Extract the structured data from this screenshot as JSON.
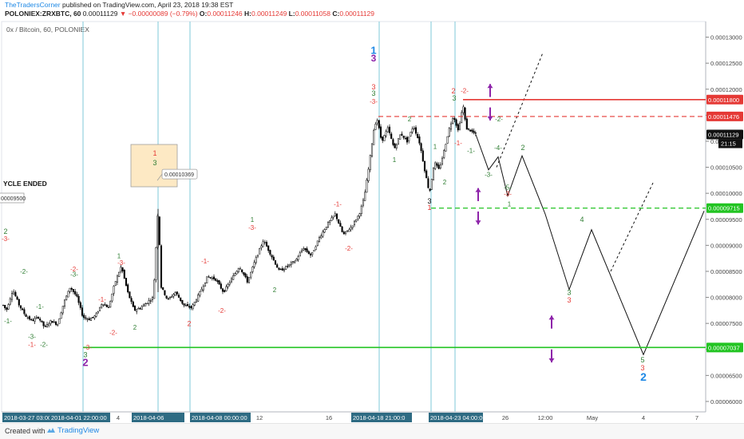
{
  "header": {
    "author": "TheTradersCorner",
    "published_text": "published on TradingView.com, April 23, 2018 19:38 EST",
    "symbol": "POLONIEX:ZRXBTC, 60",
    "last_price": "0.00011129",
    "change": "▼ −0.00000089 (−0.79%)",
    "o_label": "O:",
    "o_value": "0.00011246",
    "h_label": "H:",
    "h_value": "0.00011249",
    "l_label": "L:",
    "l_value": "0.00011058",
    "c_label": "C:",
    "c_value": "0.00011129"
  },
  "footer": {
    "created_with": "Created with",
    "brand": "TradingView"
  },
  "colors": {
    "candle": "#000000",
    "vline": "#7fc8d8",
    "red": "#e53935",
    "green": "#22c422",
    "label_green": "#2e7d32",
    "purple": "#8e24aa",
    "blue": "#1e88e5",
    "note_bg": "#fde9c4"
  },
  "chart_data": {
    "type": "candlestick",
    "title": "0x / Bitcoin, 60, POLONIEX",
    "ylim": [
      5.8e-05,
      0.000133
    ],
    "y_ticks": [
      "0.00013000",
      "0.00012500",
      "0.00012000",
      "0.00011500",
      "0.00011000",
      "0.00010500",
      "0.00010000",
      "0.00009500",
      "0.00009000",
      "0.00008500",
      "0.00008000",
      "0.00007500",
      "0.00007000",
      "0.00006500",
      "0.00006000"
    ],
    "x_ticks": [
      {
        "label": "2018-03-27 03:00:00",
        "highlighted": true
      },
      {
        "label": "2018-04-01 22:00:00",
        "highlighted": true
      },
      {
        "label": "4",
        "highlighted": false
      },
      {
        "label": "2018-04-06",
        "highlighted": true
      },
      {
        "label": "2018-04-08 00:00:00",
        "highlighted": true
      },
      {
        "label": "12",
        "highlighted": false
      },
      {
        "label": "16",
        "highlighted": false
      },
      {
        "label": "2018-04-18 21:00:0",
        "highlighted": true
      },
      {
        "label": "2018-04-",
        "highlighted": true
      },
      {
        "label": "2018-04-23 04:00:00",
        "highlighted": true
      },
      {
        "label": "26",
        "highlighted": false
      },
      {
        "label": "12:00",
        "highlighted": false
      },
      {
        "label": "May",
        "highlighted": false
      },
      {
        "label": "4",
        "highlighted": false
      },
      {
        "label": "7",
        "highlighted": false
      }
    ],
    "series": [
      {
        "kind": "price_path",
        "points": [
          [
            0,
            7.95e-05
          ],
          [
            8,
            7.75e-05
          ],
          [
            16,
            8.15e-05
          ],
          [
            24,
            7.85e-05
          ],
          [
            32,
            7.65e-05
          ],
          [
            40,
            7.55e-05
          ],
          [
            48,
            7.62e-05
          ],
          [
            56,
            7.42e-05
          ],
          [
            64,
            7.55e-05
          ],
          [
            72,
            7.48e-05
          ],
          [
            80,
            7.9e-05
          ],
          [
            88,
            8.2e-05
          ],
          [
            96,
            8.02e-05
          ],
          [
            104,
            7.62e-05
          ],
          [
            112,
            7.58e-05
          ],
          [
            120,
            7.65e-05
          ],
          [
            128,
            7.9e-05
          ],
          [
            136,
            7.8e-05
          ],
          [
            144,
            8.28e-05
          ],
          [
            152,
            8.6e-05
          ],
          [
            160,
            8.1e-05
          ],
          [
            168,
            7.75e-05
          ],
          [
            176,
            7.8e-05
          ],
          [
            184,
            7.9e-05
          ],
          [
            192,
            8e-05
          ],
          [
            198,
            9.7e-05
          ],
          [
            202,
            8.2e-05
          ],
          [
            210,
            7.95e-05
          ],
          [
            220,
            8.1e-05
          ],
          [
            230,
            7.85e-05
          ],
          [
            240,
            7.8e-05
          ],
          [
            250,
            8.08e-05
          ],
          [
            260,
            8.4e-05
          ],
          [
            270,
            8.35e-05
          ],
          [
            280,
            8.1e-05
          ],
          [
            290,
            8.35e-05
          ],
          [
            300,
            8.6e-05
          ],
          [
            310,
            8.3e-05
          ],
          [
            320,
            8.72e-05
          ],
          [
            330,
            9.1e-05
          ],
          [
            340,
            8.8e-05
          ],
          [
            350,
            8.5e-05
          ],
          [
            360,
            8.6e-05
          ],
          [
            370,
            8.7e-05
          ],
          [
            380,
            8.95e-05
          ],
          [
            390,
            8.8e-05
          ],
          [
            400,
            9.15e-05
          ],
          [
            410,
            9.4e-05
          ],
          [
            420,
            9.6e-05
          ],
          [
            430,
            9.2e-05
          ],
          [
            440,
            9.35e-05
          ],
          [
            450,
            9.6e-05
          ],
          [
            456,
            9.9e-05
          ],
          [
            462,
            0.000105
          ],
          [
            468,
            0.000112
          ],
          [
            472,
            0.0001145
          ],
          [
            478,
            0.00011
          ],
          [
            486,
            0.0001125
          ],
          [
            494,
            0.0001085
          ],
          [
            502,
            0.0001115
          ],
          [
            510,
            0.00011
          ],
          [
            518,
            0.000113
          ],
          [
            526,
            0.0001095
          ],
          [
            532,
            0.0001045
          ],
          [
            538,
            0.0001
          ],
          [
            544,
            0.000106
          ],
          [
            550,
            0.0001045
          ],
          [
            556,
            0.000108
          ],
          [
            562,
            0.000112
          ],
          [
            568,
            0.000115
          ],
          [
            574,
            0.000112
          ],
          [
            580,
            0.000117
          ],
          [
            584,
            0.0001125
          ],
          [
            590,
            0.000112
          ],
          [
            596,
            0.0001113
          ]
        ]
      },
      {
        "kind": "projection",
        "points": [
          [
            596,
            0.0001113
          ],
          [
            612,
            0.0001045
          ],
          [
            624,
            0.000107
          ],
          [
            636,
            9.95e-05
          ],
          [
            654,
            0.0001072
          ],
          [
            683,
            9.6e-05
          ],
          [
            713,
            8.15e-05
          ],
          [
            741,
            9.3e-05
          ],
          [
            806,
            6.9e-05
          ],
          [
            882,
            9.66e-05
          ]
        ]
      },
      {
        "kind": "dashed_projection",
        "points": [
          [
            622,
            0.000105
          ],
          [
            680,
            0.000127
          ]
        ]
      },
      {
        "kind": "dashed_projection",
        "points": [
          [
            765,
            8.5e-05
          ],
          [
            818,
            0.000102
          ]
        ]
      }
    ],
    "levels": [
      {
        "label": "0.00011800",
        "value": 0.000118,
        "style": "solid",
        "color": "red",
        "from_x": 580
      },
      {
        "label": "0.00011476",
        "value": 0.00011476,
        "style": "dashed",
        "color": "red",
        "from_x": 474
      },
      {
        "label": "0.00009715",
        "value": 9.715e-05,
        "style": "dashed",
        "color": "green",
        "from_x": 540
      },
      {
        "label": "0.00007037",
        "value": 7.037e-05,
        "style": "solid",
        "color": "green",
        "from_x": 104
      }
    ],
    "current_price": {
      "label": "0.00011129",
      "countdown": "21:15",
      "value": 0.00011129
    },
    "vertical_markers_x": [
      104,
      198,
      238,
      475,
      540,
      570
    ],
    "note": {
      "text": "0.00010369",
      "label_top": "1",
      "label_bottom": "3",
      "value": 0.00010369
    },
    "left_text": "YCLE ENDED",
    "left_box": "00009500",
    "annotations": [
      {
        "text": "1",
        "x": 468,
        "y": 0.0001268,
        "color": "blue",
        "size": 13
      },
      {
        "text": "3",
        "x": 468,
        "y": 0.0001253,
        "color": "purple",
        "size": 12
      },
      {
        "text": "3",
        "x": 468,
        "y": 0.00012,
        "color": "red",
        "size": 9
      },
      {
        "text": "3",
        "x": 468,
        "y": 0.0001187,
        "color": "label_green",
        "size": 9
      },
      {
        "text": "-3-",
        "x": 468,
        "y": 0.0001172,
        "color": "red",
        "size": 8
      },
      {
        "text": "2",
        "x": 568,
        "y": 0.0001192,
        "color": "red",
        "size": 9
      },
      {
        "text": "-2-",
        "x": 582,
        "y": 0.0001193,
        "color": "red",
        "size": 8
      },
      {
        "text": "3",
        "x": 569,
        "y": 0.0001178,
        "color": "label_green",
        "size": 9
      },
      {
        "text": "1",
        "x": 494,
        "y": 0.000106,
        "color": "label_green",
        "size": 8
      },
      {
        "text": "2",
        "x": 513,
        "y": 0.0001138,
        "color": "label_green",
        "size": 8
      },
      {
        "text": "1",
        "x": 545,
        "y": 0.0001085,
        "color": "label_green",
        "size": 8
      },
      {
        "text": "2",
        "x": 557,
        "y": 0.0001017,
        "color": "label_green",
        "size": 8
      },
      {
        "text": "3",
        "x": 538,
        "y": 9.8e-05,
        "color": "black",
        "size": 9
      },
      {
        "text": "1",
        "x": 538,
        "y": 9.68e-05,
        "color": "red",
        "size": 9
      },
      {
        "text": "-1-",
        "x": 574,
        "y": 0.0001092,
        "color": "red",
        "size": 8
      },
      {
        "text": "-1-",
        "x": 590,
        "y": 0.0001078,
        "color": "label_green",
        "size": 8
      },
      {
        "text": "-2-",
        "x": 625,
        "y": 0.0001138,
        "color": "label_green",
        "size": 8
      },
      {
        "text": "-3-",
        "x": 612,
        "y": 0.0001032,
        "color": "label_green",
        "size": 8
      },
      {
        "text": "-4-",
        "x": 624,
        "y": 0.0001083,
        "color": "label_green",
        "size": 8
      },
      {
        "text": "-5-",
        "x": 636,
        "y": 0.0001007,
        "color": "label_green",
        "size": 8
      },
      {
        "text": "-3-",
        "x": 636,
        "y": 9.95e-05,
        "color": "red",
        "size": 8
      },
      {
        "text": "1",
        "x": 638,
        "y": 9.75e-05,
        "color": "label_green",
        "size": 8
      },
      {
        "text": "2",
        "x": 655,
        "y": 0.0001083,
        "color": "label_green",
        "size": 9
      },
      {
        "text": "4",
        "x": 729,
        "y": 9.45e-05,
        "color": "label_green",
        "size": 9
      },
      {
        "text": "3",
        "x": 713,
        "y": 8.05e-05,
        "color": "label_green",
        "size": 9
      },
      {
        "text": "3",
        "x": 713,
        "y": 7.9e-05,
        "color": "red",
        "size": 9
      },
      {
        "text": "5",
        "x": 805,
        "y": 6.75e-05,
        "color": "label_green",
        "size": 9
      },
      {
        "text": "3",
        "x": 805,
        "y": 6.6e-05,
        "color": "red",
        "size": 9
      },
      {
        "text": "2",
        "x": 806,
        "y": 6.4e-05,
        "color": "blue",
        "size": 14
      },
      {
        "text": "-1-",
        "x": 423,
        "y": 9.75e-05,
        "color": "red",
        "size": 8
      },
      {
        "text": "-2-",
        "x": 437,
        "y": 8.9e-05,
        "color": "red",
        "size": 8
      },
      {
        "text": "1",
        "x": 316,
        "y": 9.45e-05,
        "color": "label_green",
        "size": 8
      },
      {
        "text": "-3-",
        "x": 316,
        "y": 9.3e-05,
        "color": "red",
        "size": 8
      },
      {
        "text": "2",
        "x": 344,
        "y": 8.1e-05,
        "color": "label_green",
        "size": 8
      },
      {
        "text": "-1-",
        "x": 257,
        "y": 8.65e-05,
        "color": "red",
        "size": 8
      },
      {
        "text": "-2-",
        "x": 278,
        "y": 7.7e-05,
        "color": "red",
        "size": 8
      },
      {
        "text": "2",
        "x": 237,
        "y": 7.45e-05,
        "color": "red",
        "size": 9
      },
      {
        "text": "1",
        "x": 149,
        "y": 8.75e-05,
        "color": "label_green",
        "size": 8
      },
      {
        "text": "-3-",
        "x": 152,
        "y": 8.62e-05,
        "color": "red",
        "size": 8
      },
      {
        "text": "-1-",
        "x": 128,
        "y": 7.92e-05,
        "color": "red",
        "size": 8
      },
      {
        "text": "-2-",
        "x": 142,
        "y": 7.28e-05,
        "color": "red",
        "size": 8
      },
      {
        "text": "2",
        "x": 169,
        "y": 7.38e-05,
        "color": "label_green",
        "size": 8
      },
      {
        "text": "-2-",
        "x": 93,
        "y": 8.5e-05,
        "color": "red",
        "size": 8
      },
      {
        "text": "-3-",
        "x": 93,
        "y": 8.4e-05,
        "color": "label_green",
        "size": 8
      },
      {
        "text": "-1-",
        "x": 50,
        "y": 7.78e-05,
        "color": "label_green",
        "size": 8
      },
      {
        "text": "-2-",
        "x": 30,
        "y": 8.45e-05,
        "color": "label_green",
        "size": 8
      },
      {
        "text": "-1-",
        "x": 10,
        "y": 7.5e-05,
        "color": "label_green",
        "size": 8
      },
      {
        "text": "-1-",
        "x": 40,
        "y": 7.05e-05,
        "color": "red",
        "size": 8
      },
      {
        "text": "-3-",
        "x": 40,
        "y": 7.2e-05,
        "color": "label_green",
        "size": 8
      },
      {
        "text": "-2-",
        "x": 55,
        "y": 7.05e-05,
        "color": "label_green",
        "size": 8
      },
      {
        "text": "-3-",
        "x": 110,
        "y": 7e-05,
        "color": "red",
        "size": 8
      },
      {
        "text": "3",
        "x": 107,
        "y": 6.85e-05,
        "color": "label_green",
        "size": 9
      },
      {
        "text": "2",
        "x": 107,
        "y": 6.68e-05,
        "color": "purple",
        "size": 13
      },
      {
        "text": "2",
        "x": 7,
        "y": 9.22e-05,
        "color": "label_green",
        "size": 9
      },
      {
        "text": "-3-",
        "x": 7,
        "y": 9.08e-05,
        "color": "red",
        "size": 8
      }
    ],
    "arrows": [
      {
        "x": 614,
        "from": 0.000121,
        "to": 0.0001185,
        "dir": "up"
      },
      {
        "x": 614,
        "from": 0.0001165,
        "to": 0.000114,
        "dir": "down"
      },
      {
        "x": 599,
        "from": 0.000101,
        "to": 9.85e-05,
        "dir": "up"
      },
      {
        "x": 599,
        "from": 9.65e-05,
        "to": 9.4e-05,
        "dir": "down"
      },
      {
        "x": 691,
        "from": 7.65e-05,
        "to": 7.4e-05,
        "dir": "up"
      },
      {
        "x": 691,
        "from": 7e-05,
        "to": 6.75e-05,
        "dir": "down"
      }
    ]
  }
}
